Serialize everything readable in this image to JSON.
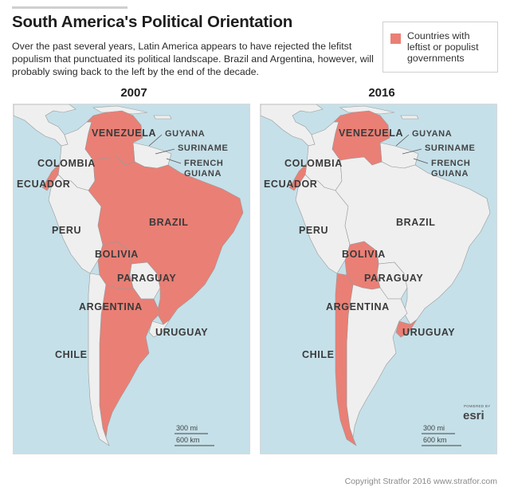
{
  "header": {
    "title": "South America's Political Orientation",
    "subtitle": "Over the past several years, Latin America appears to have rejected the lefitst populism that punctuated its political landscape. Brazil and Argentina, however, will probably swing back to the left by the end of the decade."
  },
  "legend": {
    "label": "Countries with leftist or populist governments",
    "color": "#ea7f75"
  },
  "colors": {
    "ocean": "#c5e0e9",
    "land": "#efefef",
    "highlight": "#ea7f75",
    "border": "#9a9a9a"
  },
  "maps": [
    {
      "year": "2007",
      "leftist": [
        "venezuela",
        "ecuador",
        "brazil",
        "bolivia",
        "argentina"
      ]
    },
    {
      "year": "2016",
      "leftist": [
        "venezuela",
        "ecuador",
        "bolivia",
        "chile",
        "uruguay"
      ]
    }
  ],
  "labels": {
    "venezuela": "VENEZUELA",
    "guyana": "GUYANA",
    "suriname": "SURINAME",
    "french_guiana_1": "FRENCH",
    "french_guiana_2": "GUIANA",
    "colombia": "COLOMBIA",
    "ecuador": "ECUADOR",
    "peru": "PERU",
    "brazil": "BRAZIL",
    "bolivia": "BOLIVIA",
    "paraguay": "PARAGUAY",
    "argentina": "ARGENTINA",
    "uruguay": "URUGUAY",
    "chile": "CHILE"
  },
  "scale": {
    "miles": "300 mi",
    "km": "600 km"
  },
  "esri": {
    "powered_by": "POWERED BY",
    "name": "esri"
  },
  "footer": {
    "copyright": "Copyright Stratfor 2016  www.stratfor.com"
  }
}
